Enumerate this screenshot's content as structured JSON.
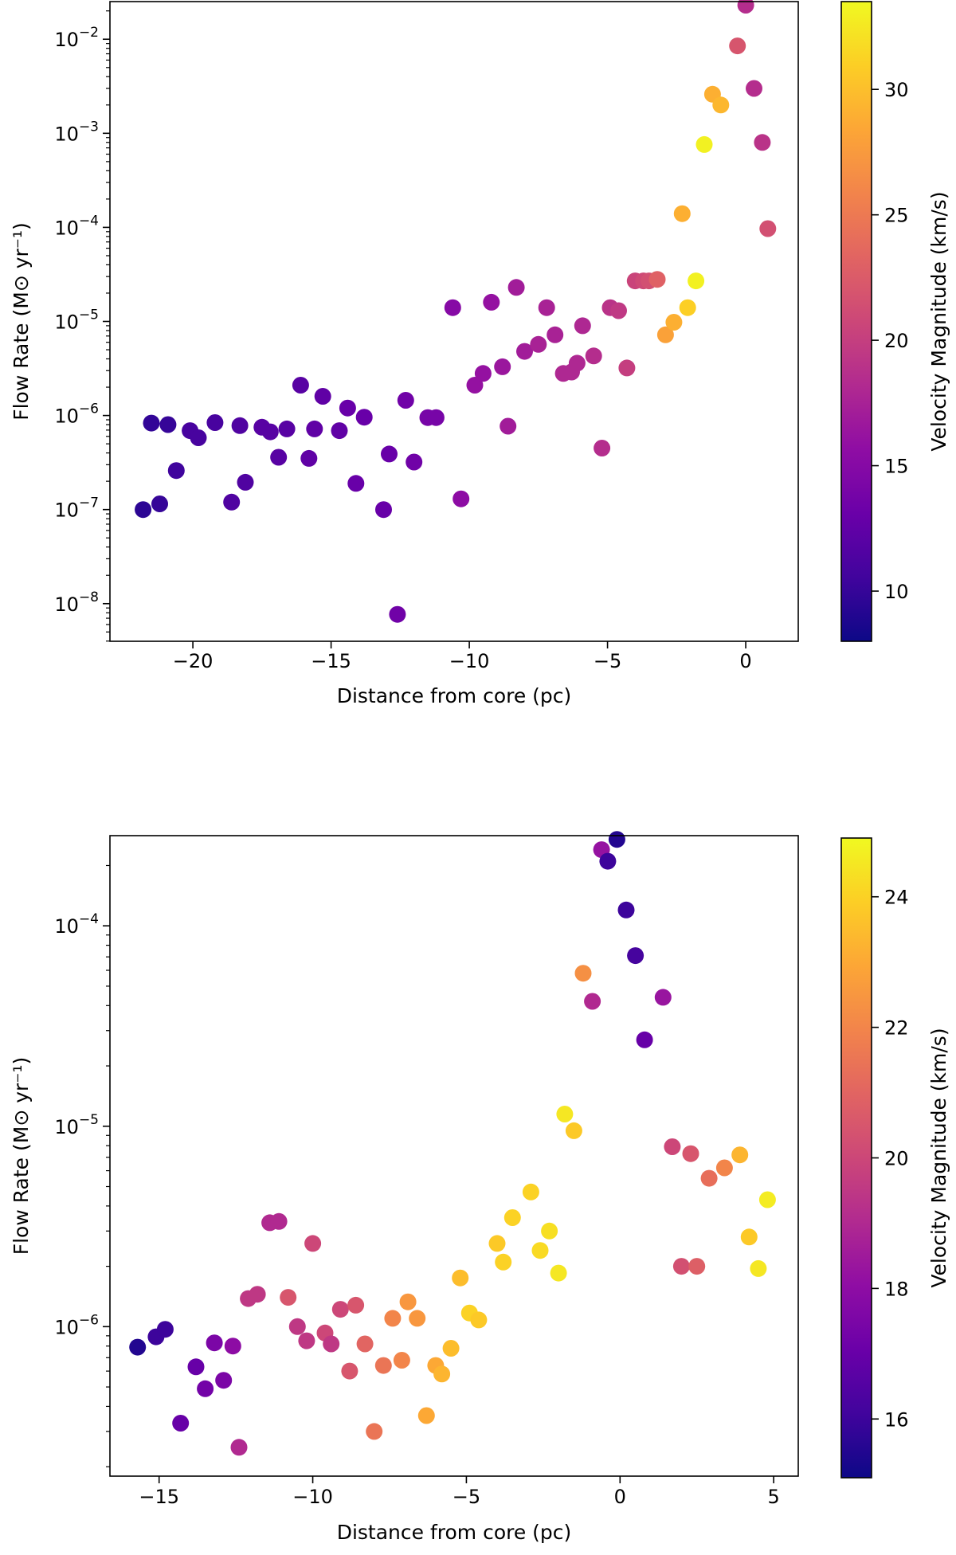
{
  "chart_data": [
    {
      "type": "scatter",
      "xlabel": "Distance from core (pc)",
      "ylabel": "Flow Rate (M⊙ yr⁻¹)",
      "yscale": "log",
      "xlim": [
        -23.0,
        1.9
      ],
      "ylog_lim": [
        -8.4,
        -1.6
      ],
      "xticks": [
        -20,
        -15,
        -10,
        -5,
        0
      ],
      "xtick_labels": [
        "−20",
        "−15",
        "−10",
        "−5",
        "0"
      ],
      "yticks_exp": [
        -8,
        -7,
        -6,
        -5,
        -4,
        -3,
        -2
      ],
      "colorbar": {
        "label": "Velocity Magnitude (km/s)",
        "range": [
          8.0,
          33.5
        ],
        "ticks": [
          10,
          15,
          20,
          25,
          30
        ],
        "tick_labels": [
          "10",
          "15",
          "20",
          "25",
          "30"
        ],
        "colormap": "plasma"
      },
      "points": [
        [
          -21.8,
          1e-07,
          9.5
        ],
        [
          -21.5,
          8.3e-07,
          9.8
        ],
        [
          -21.2,
          1.15e-07,
          10.0
        ],
        [
          -20.9,
          8e-07,
          10.0
        ],
        [
          -20.6,
          2.6e-07,
          10.5
        ],
        [
          -20.1,
          6.9e-07,
          11.0
        ],
        [
          -19.8,
          5.8e-07,
          11.0
        ],
        [
          -19.2,
          8.4e-07,
          11.0
        ],
        [
          -18.6,
          1.2e-07,
          11.5
        ],
        [
          -18.3,
          7.8e-07,
          11.5
        ],
        [
          -18.1,
          1.95e-07,
          11.5
        ],
        [
          -17.5,
          7.5e-07,
          12.0
        ],
        [
          -17.2,
          6.7e-07,
          12.0
        ],
        [
          -16.9,
          3.6e-07,
          12.0
        ],
        [
          -16.6,
          7.2e-07,
          12.0
        ],
        [
          -16.1,
          2.1e-06,
          12.0
        ],
        [
          -15.8,
          3.5e-07,
          12.5
        ],
        [
          -15.6,
          7.2e-07,
          12.5
        ],
        [
          -15.3,
          1.6e-06,
          12.5
        ],
        [
          -14.7,
          6.9e-07,
          12.5
        ],
        [
          -14.4,
          1.2e-06,
          13.0
        ],
        [
          -14.1,
          1.9e-07,
          13.0
        ],
        [
          -13.8,
          9.6e-07,
          13.0
        ],
        [
          -13.1,
          1e-07,
          13.0
        ],
        [
          -12.9,
          3.9e-07,
          13.0
        ],
        [
          -12.6,
          7.7e-09,
          13.5
        ],
        [
          -12.3,
          1.45e-06,
          13.5
        ],
        [
          -12.0,
          3.2e-07,
          13.5
        ],
        [
          -11.5,
          9.5e-07,
          14.0
        ],
        [
          -11.2,
          9.5e-07,
          14.0
        ],
        [
          -10.6,
          1.4e-05,
          15.0
        ],
        [
          -10.3,
          1.3e-07,
          15.5
        ],
        [
          -9.8,
          2.1e-06,
          16.0
        ],
        [
          -9.5,
          2.8e-06,
          16.0
        ],
        [
          -9.2,
          1.6e-05,
          16.0
        ],
        [
          -8.8,
          3.3e-06,
          16.5
        ],
        [
          -8.6,
          7.7e-07,
          17.0
        ],
        [
          -8.3,
          2.3e-05,
          17.0
        ],
        [
          -8.0,
          4.8e-06,
          17.0
        ],
        [
          -7.5,
          5.7e-06,
          17.5
        ],
        [
          -7.2,
          1.4e-05,
          17.5
        ],
        [
          -6.9,
          7.2e-06,
          17.5
        ],
        [
          -6.6,
          2.8e-06,
          18.0
        ],
        [
          -6.3,
          2.9e-06,
          18.0
        ],
        [
          -6.1,
          3.6e-06,
          18.0
        ],
        [
          -5.9,
          9e-06,
          18.0
        ],
        [
          -5.5,
          4.3e-06,
          18.5
        ],
        [
          -5.2,
          4.5e-07,
          18.5
        ],
        [
          -4.9,
          1.4e-05,
          19.0
        ],
        [
          -4.6,
          1.3e-05,
          19.5
        ],
        [
          -4.3,
          3.2e-06,
          20.0
        ],
        [
          -4.0,
          2.7e-05,
          20.5
        ],
        [
          -3.7,
          2.7e-05,
          21.0
        ],
        [
          -3.5,
          2.7e-05,
          21.5
        ],
        [
          -3.2,
          2.8e-05,
          23.0
        ],
        [
          -2.9,
          7.2e-06,
          28.0
        ],
        [
          -2.6,
          9.8e-06,
          29.0
        ],
        [
          -2.3,
          0.00014,
          29.0
        ],
        [
          -2.1,
          1.4e-05,
          31.0
        ],
        [
          -1.8,
          2.7e-05,
          33.0
        ],
        [
          -1.5,
          0.00076,
          33.0
        ],
        [
          -1.2,
          0.0026,
          29.0
        ],
        [
          -0.9,
          0.002,
          29.5
        ],
        [
          -0.3,
          0.0085,
          22.0
        ],
        [
          0.0,
          0.023,
          18.5
        ],
        [
          0.3,
          0.003,
          18.5
        ],
        [
          0.6,
          0.0008,
          19.0
        ],
        [
          0.8,
          9.7e-05,
          21.5
        ]
      ]
    },
    {
      "type": "scatter",
      "xlabel": "Distance from core (pc)",
      "ylabel": "Flow Rate (M⊙ yr⁻¹)",
      "yscale": "log",
      "xlim": [
        -16.6,
        5.8
      ],
      "ylog_lim": [
        -6.746,
        -3.55
      ],
      "xticks": [
        -15,
        -10,
        -5,
        0,
        5
      ],
      "xtick_labels": [
        "−15",
        "−10",
        "−5",
        "0",
        "5"
      ],
      "yticks_exp": [
        -6,
        -5,
        -4
      ],
      "colorbar": {
        "label": "Velocity Magnitude (km/s)",
        "range": [
          15.1,
          24.9
        ],
        "ticks": [
          16,
          18,
          20,
          22,
          24
        ],
        "tick_labels": [
          "16",
          "18",
          "20",
          "22",
          "24"
        ],
        "colormap": "plasma"
      },
      "points": [
        [
          -15.7,
          7.9e-07,
          15.5
        ],
        [
          -15.1,
          8.9e-07,
          16.0
        ],
        [
          -14.8,
          9.7e-07,
          16.0
        ],
        [
          -14.3,
          3.3e-07,
          17.0
        ],
        [
          -13.8,
          6.3e-07,
          17.0
        ],
        [
          -13.5,
          4.9e-07,
          17.3
        ],
        [
          -13.2,
          8.3e-07,
          17.5
        ],
        [
          -12.9,
          5.4e-07,
          17.5
        ],
        [
          -12.6,
          8e-07,
          18.0
        ],
        [
          -12.4,
          2.5e-07,
          19.0
        ],
        [
          -12.1,
          1.38e-06,
          19.5
        ],
        [
          -11.8,
          1.45e-06,
          19.5
        ],
        [
          -11.4,
          3.3e-06,
          19.0
        ],
        [
          -11.1,
          3.35e-06,
          19.0
        ],
        [
          -10.8,
          1.4e-06,
          20.5
        ],
        [
          -10.5,
          1e-06,
          19.5
        ],
        [
          -10.2,
          8.5e-07,
          19.5
        ],
        [
          -10.0,
          2.6e-06,
          20.0
        ],
        [
          -9.6,
          9.3e-07,
          20.0
        ],
        [
          -9.4,
          8.2e-07,
          19.5
        ],
        [
          -9.1,
          1.22e-06,
          20.0
        ],
        [
          -8.8,
          6e-07,
          20.5
        ],
        [
          -8.6,
          1.28e-06,
          20.5
        ],
        [
          -8.3,
          8.2e-07,
          21.0
        ],
        [
          -8.0,
          3e-07,
          21.5
        ],
        [
          -7.7,
          6.4e-07,
          21.5
        ],
        [
          -7.4,
          1.1e-06,
          22.0
        ],
        [
          -7.1,
          6.8e-07,
          22.0
        ],
        [
          -6.9,
          1.33e-06,
          22.5
        ],
        [
          -6.6,
          1.1e-06,
          22.5
        ],
        [
          -6.3,
          3.6e-07,
          23.0
        ],
        [
          -6.0,
          6.4e-07,
          23.0
        ],
        [
          -5.8,
          5.8e-07,
          23.3
        ],
        [
          -5.5,
          7.8e-07,
          23.5
        ],
        [
          -5.2,
          1.75e-06,
          23.5
        ],
        [
          -4.9,
          1.17e-06,
          24.0
        ],
        [
          -4.6,
          1.08e-06,
          23.8
        ],
        [
          -4.0,
          2.6e-06,
          23.8
        ],
        [
          -3.8,
          2.1e-06,
          24.0
        ],
        [
          -3.5,
          3.5e-06,
          24.0
        ],
        [
          -2.9,
          4.7e-06,
          24.0
        ],
        [
          -2.6,
          2.4e-06,
          24.2
        ],
        [
          -2.3,
          3e-06,
          24.3
        ],
        [
          -2.0,
          1.85e-06,
          24.5
        ],
        [
          -1.8,
          1.15e-05,
          24.5
        ],
        [
          -1.5,
          9.5e-06,
          23.8
        ],
        [
          -1.2,
          5.8e-05,
          22.3
        ],
        [
          -0.9,
          4.2e-05,
          19.0
        ],
        [
          -0.6,
          0.00024,
          18.2
        ],
        [
          -0.4,
          0.00021,
          16.0
        ],
        [
          -0.1,
          0.00027,
          15.5
        ],
        [
          0.2,
          0.00012,
          16.0
        ],
        [
          0.5,
          7.1e-05,
          16.2
        ],
        [
          0.8,
          2.7e-05,
          17.0
        ],
        [
          1.4,
          4.4e-05,
          18.3
        ],
        [
          1.7,
          7.9e-06,
          20.0
        ],
        [
          2.0,
          2e-06,
          20.3
        ],
        [
          2.3,
          7.3e-06,
          20.5
        ],
        [
          2.5,
          2e-06,
          20.8
        ],
        [
          2.9,
          5.5e-06,
          21.3
        ],
        [
          3.4,
          6.2e-06,
          22.0
        ],
        [
          3.9,
          7.2e-06,
          23.3
        ],
        [
          4.2,
          2.8e-06,
          23.8
        ],
        [
          4.5,
          1.95e-06,
          24.5
        ],
        [
          4.8,
          4.3e-06,
          24.6
        ]
      ]
    }
  ]
}
